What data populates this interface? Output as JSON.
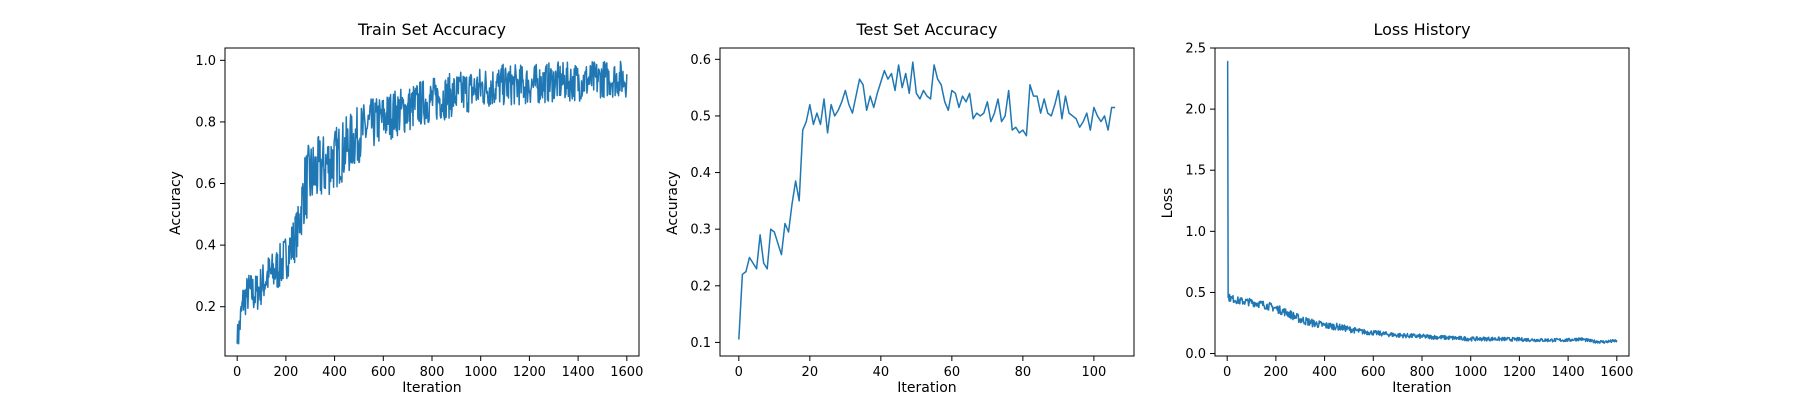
{
  "figure": {
    "background": "#ffffff",
    "line_color": "#1f77b4"
  },
  "chart_data": [
    {
      "type": "line",
      "title": "Train Set Accuracy",
      "xlabel": "Iteration",
      "ylabel": "Accuracy",
      "xlim": [
        -50,
        1650
      ],
      "ylim": [
        0.04,
        1.04
      ],
      "xticks": [
        0,
        200,
        400,
        600,
        800,
        1000,
        1200,
        1400,
        1600
      ],
      "yticks": [
        0.2,
        0.4,
        0.6,
        0.8,
        1.0
      ],
      "xtick_labels": [
        "0",
        "200",
        "400",
        "600",
        "800",
        "1000",
        "1200",
        "1400",
        "1600"
      ],
      "ytick_labels": [
        "0.2",
        "0.4",
        "0.6",
        "0.8",
        "1.0"
      ],
      "grid": false,
      "series": [
        {
          "points_estimated": [
            [
              0,
              0.08
            ],
            [
              25,
              0.22
            ],
            [
              50,
              0.25
            ],
            [
              75,
              0.24
            ],
            [
              100,
              0.27
            ],
            [
              125,
              0.3
            ],
            [
              150,
              0.31
            ],
            [
              175,
              0.33
            ],
            [
              200,
              0.36
            ],
            [
              225,
              0.4
            ],
            [
              250,
              0.45
            ],
            [
              275,
              0.58
            ],
            [
              300,
              0.62
            ],
            [
              350,
              0.65
            ],
            [
              400,
              0.68
            ],
            [
              450,
              0.72
            ],
            [
              500,
              0.76
            ],
            [
              550,
              0.79
            ],
            [
              600,
              0.81
            ],
            [
              650,
              0.83
            ],
            [
              700,
              0.84
            ],
            [
              750,
              0.86
            ],
            [
              800,
              0.87
            ],
            [
              850,
              0.88
            ],
            [
              900,
              0.89
            ],
            [
              950,
              0.9
            ],
            [
              1000,
              0.91
            ],
            [
              1100,
              0.92
            ],
            [
              1200,
              0.92
            ],
            [
              1300,
              0.93
            ],
            [
              1400,
              0.93
            ],
            [
              1500,
              0.94
            ],
            [
              1600,
              0.94
            ]
          ],
          "noise_amplitude_estimated": [
            [
              0,
              0.06
            ],
            [
              250,
              0.08
            ],
            [
              280,
              0.12
            ],
            [
              600,
              0.08
            ],
            [
              1000,
              0.07
            ],
            [
              1600,
              0.06
            ]
          ]
        }
      ]
    },
    {
      "type": "line",
      "title": "Test Set Accuracy",
      "xlabel": "Iteration",
      "ylabel": "Accuracy",
      "xlim": [
        -5.3,
        111.3
      ],
      "ylim": [
        0.076,
        0.62
      ],
      "xticks": [
        0,
        20,
        40,
        60,
        80,
        100
      ],
      "yticks": [
        0.1,
        0.2,
        0.3,
        0.4,
        0.5,
        0.6
      ],
      "xtick_labels": [
        "0",
        "20",
        "40",
        "60",
        "80",
        "100"
      ],
      "ytick_labels": [
        "0.1",
        "0.2",
        "0.3",
        "0.4",
        "0.5",
        "0.6"
      ],
      "grid": false,
      "series": [
        {
          "x": [
            0,
            1,
            2,
            3,
            4,
            5,
            6,
            7,
            8,
            9,
            10,
            11,
            12,
            13,
            14,
            15,
            16,
            17,
            18,
            19,
            20,
            21,
            22,
            23,
            24,
            25,
            26,
            27,
            28,
            29,
            30,
            31,
            32,
            33,
            34,
            35,
            36,
            37,
            38,
            39,
            40,
            41,
            42,
            43,
            44,
            45,
            46,
            47,
            48,
            49,
            50,
            51,
            52,
            53,
            54,
            55,
            56,
            57,
            58,
            59,
            60,
            61,
            62,
            63,
            64,
            65,
            66,
            67,
            68,
            69,
            70,
            71,
            72,
            73,
            74,
            75,
            76,
            77,
            78,
            79,
            80,
            81,
            82,
            83,
            84,
            85,
            86,
            87,
            88,
            89,
            90,
            91,
            92,
            93,
            94,
            95,
            96,
            97,
            98,
            99,
            100,
            101,
            102,
            103,
            104,
            105,
            106
          ],
          "y": [
            0.105,
            0.22,
            0.225,
            0.25,
            0.24,
            0.23,
            0.29,
            0.24,
            0.23,
            0.3,
            0.295,
            0.275,
            0.255,
            0.31,
            0.295,
            0.345,
            0.385,
            0.35,
            0.475,
            0.49,
            0.52,
            0.485,
            0.505,
            0.485,
            0.53,
            0.47,
            0.52,
            0.5,
            0.51,
            0.525,
            0.545,
            0.52,
            0.505,
            0.535,
            0.565,
            0.555,
            0.51,
            0.535,
            0.515,
            0.54,
            0.56,
            0.58,
            0.565,
            0.575,
            0.545,
            0.59,
            0.55,
            0.575,
            0.54,
            0.595,
            0.54,
            0.53,
            0.545,
            0.535,
            0.53,
            0.59,
            0.565,
            0.555,
            0.525,
            0.51,
            0.545,
            0.54,
            0.515,
            0.535,
            0.525,
            0.54,
            0.495,
            0.505,
            0.5,
            0.505,
            0.525,
            0.49,
            0.505,
            0.53,
            0.49,
            0.5,
            0.545,
            0.475,
            0.48,
            0.47,
            0.475,
            0.465,
            0.555,
            0.535,
            0.535,
            0.505,
            0.53,
            0.505,
            0.5,
            0.52,
            0.545,
            0.495,
            0.535,
            0.505,
            0.5,
            0.495,
            0.48,
            0.49,
            0.505,
            0.475,
            0.515,
            0.5,
            0.49,
            0.5,
            0.475,
            0.515,
            0.515
          ]
        }
      ]
    },
    {
      "type": "line",
      "title": "Loss History",
      "xlabel": "Iteration",
      "ylabel": "Loss",
      "xlim": [
        -50,
        1650
      ],
      "ylim": [
        -0.02,
        2.5
      ],
      "xticks": [
        0,
        200,
        400,
        600,
        800,
        1000,
        1200,
        1400,
        1600
      ],
      "yticks": [
        0.0,
        0.5,
        1.0,
        1.5,
        2.0,
        2.5
      ],
      "xtick_labels": [
        "0",
        "200",
        "400",
        "600",
        "800",
        "1000",
        "1200",
        "1400",
        "1600"
      ],
      "ytick_labels": [
        "0.0",
        "0.5",
        "1.0",
        "1.5",
        "2.0",
        "2.5"
      ],
      "grid": false,
      "series": [
        {
          "points_estimated": [
            [
              0,
              2.39
            ],
            [
              2,
              2.39
            ],
            [
              4,
              0.46
            ],
            [
              50,
              0.43
            ],
            [
              100,
              0.42
            ],
            [
              150,
              0.4
            ],
            [
              200,
              0.37
            ],
            [
              250,
              0.33
            ],
            [
              300,
              0.28
            ],
            [
              350,
              0.25
            ],
            [
              400,
              0.23
            ],
            [
              450,
              0.22
            ],
            [
              500,
              0.2
            ],
            [
              550,
              0.18
            ],
            [
              600,
              0.17
            ],
            [
              650,
              0.16
            ],
            [
              700,
              0.15
            ],
            [
              800,
              0.14
            ],
            [
              900,
              0.13
            ],
            [
              1000,
              0.12
            ],
            [
              1100,
              0.12
            ],
            [
              1200,
              0.115
            ],
            [
              1300,
              0.11
            ],
            [
              1400,
              0.11
            ],
            [
              1450,
              0.12
            ],
            [
              1500,
              0.1
            ],
            [
              1550,
              0.095
            ],
            [
              1600,
              0.105
            ]
          ],
          "noise_amplitude_estimated": [
            [
              0,
              0.03
            ],
            [
              300,
              0.035
            ],
            [
              600,
              0.02
            ],
            [
              1600,
              0.012
            ]
          ]
        }
      ]
    }
  ]
}
